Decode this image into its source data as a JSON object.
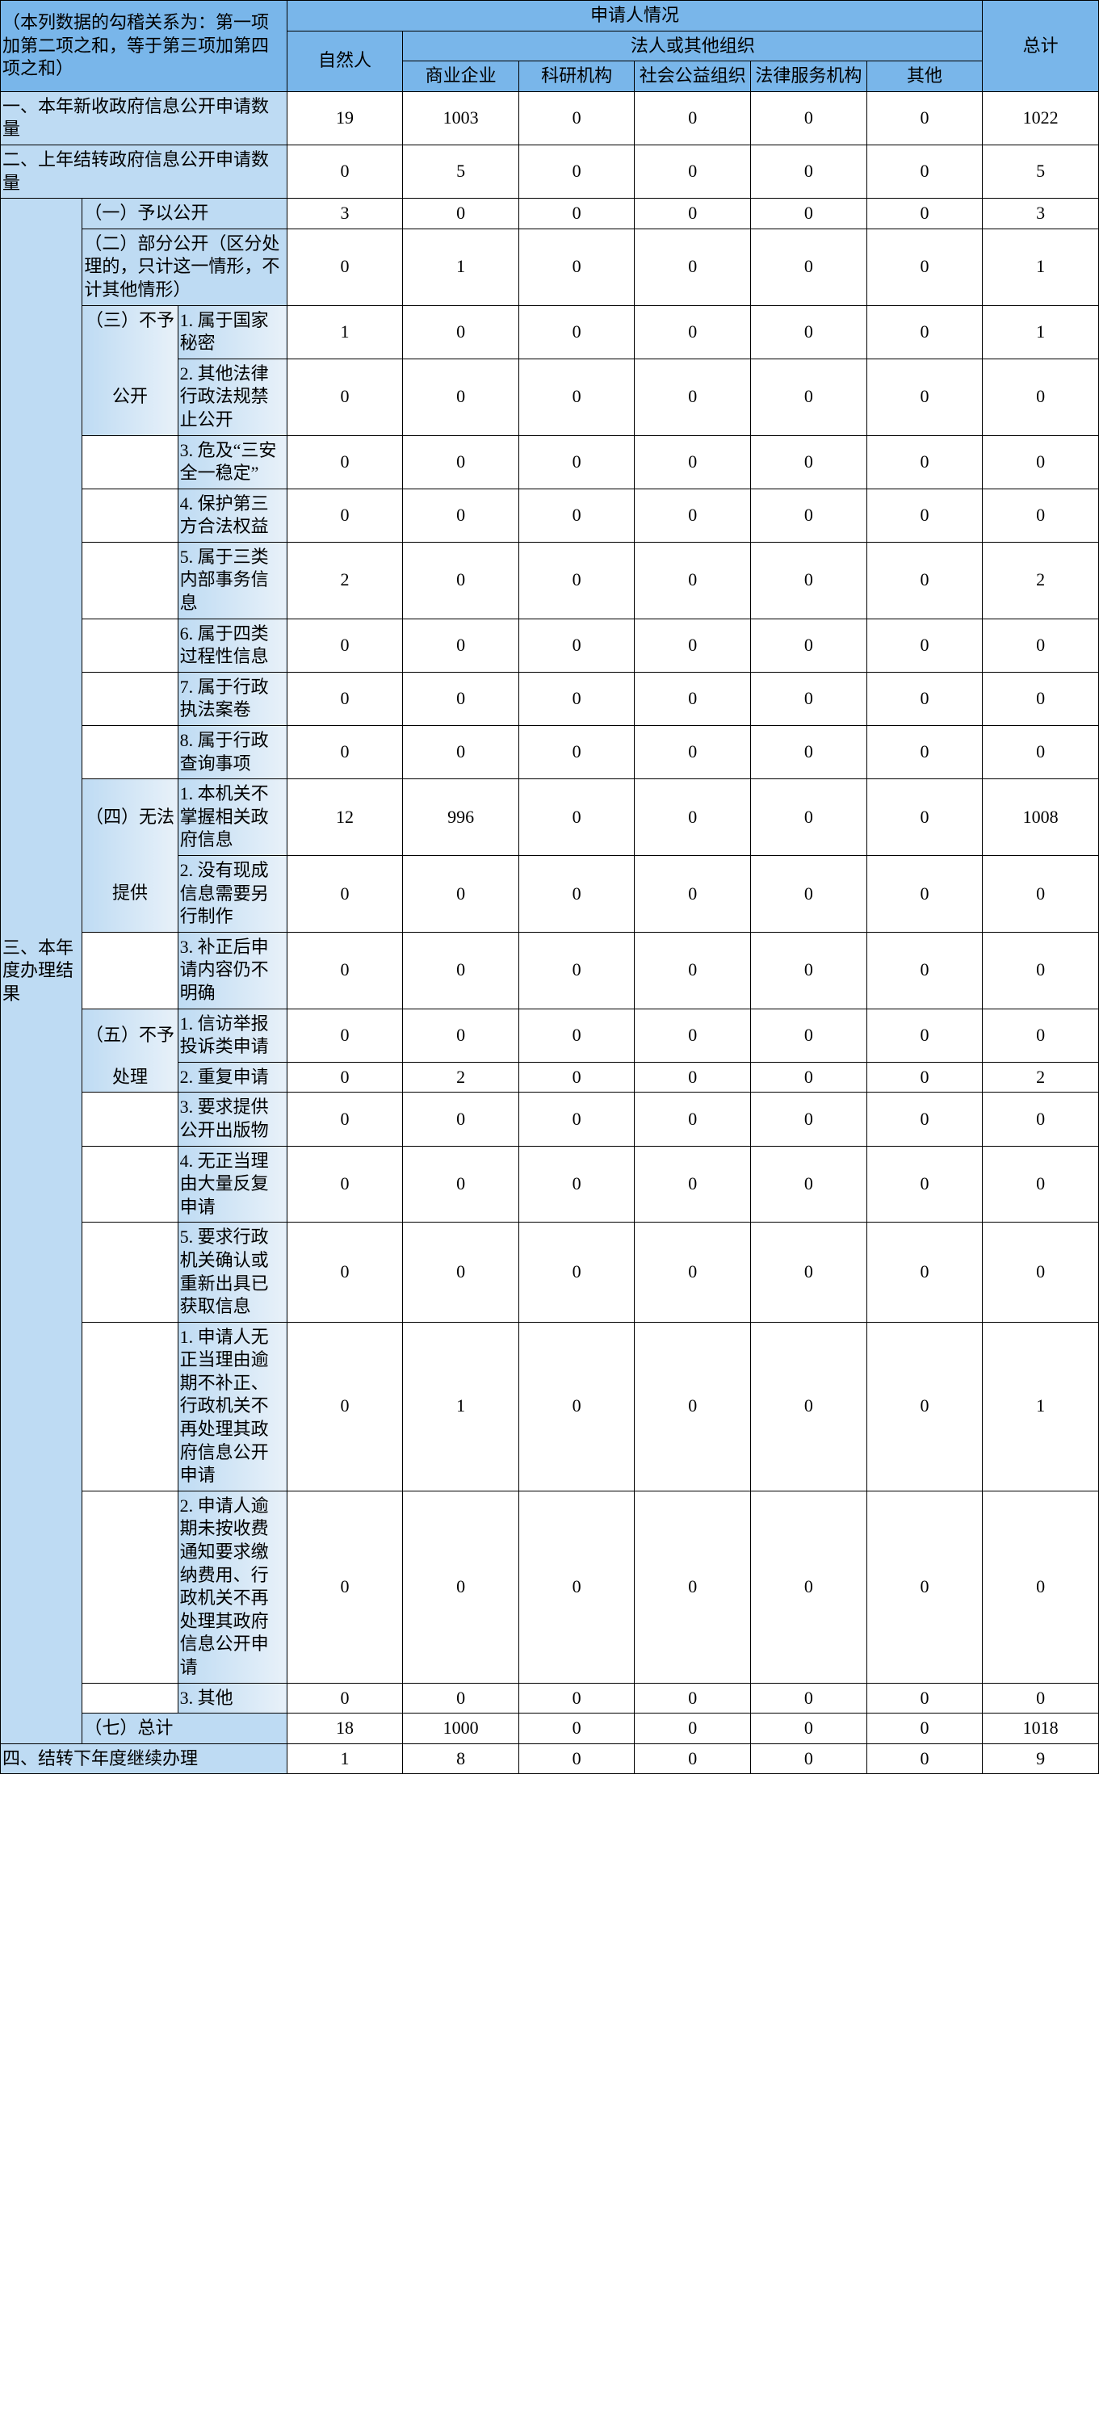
{
  "header": {
    "corner_note": "（本列数据的勾稽关系为：第一项加第二项之和，等于第三项加第四项之和）",
    "top": "申请人情况",
    "natural": "自然人",
    "legal": "法人或其他组织",
    "legal_sub": [
      "商业企业",
      "科研机构",
      "社会公益组织",
      "法律服务机构",
      "其他"
    ],
    "total": "总计"
  },
  "rows": {
    "r1_label": "一、本年新收政府信息公开申请数量",
    "r1": [
      "19",
      "1003",
      "0",
      "0",
      "0",
      "0",
      "1022"
    ],
    "r2_label": "二、上年结转政府信息公开申请数量",
    "r2": [
      "0",
      "5",
      "0",
      "0",
      "0",
      "0",
      "5"
    ],
    "r3_side_label": "三、本年度办理结果",
    "r3a_label": "（一）予以公开",
    "r3a": [
      "3",
      "0",
      "0",
      "0",
      "0",
      "0",
      "3"
    ],
    "r3b_label": "（二）部分公开（区分处理的，只计这一情形，不计其他情形）",
    "r3b": [
      "0",
      "1",
      "0",
      "0",
      "0",
      "0",
      "1"
    ],
    "r3c_side": "（三）不予",
    "r3c_side2": "公开",
    "r3c1_label": "1. 属于国家秘密",
    "r3c1": [
      "1",
      "0",
      "0",
      "0",
      "0",
      "0",
      "1"
    ],
    "r3c2_label": "2. 其他法律行政法规禁止公开",
    "r3c2": [
      "0",
      "0",
      "0",
      "0",
      "0",
      "0",
      "0"
    ],
    "r3c3_label": "3. 危及&ldquo;三安全一稳定&rdquo;",
    "r3c3": [
      "0",
      "0",
      "0",
      "0",
      "0",
      "0",
      "0"
    ],
    "r3c4_label": "4. 保护第三方合法权益",
    "r3c4": [
      "0",
      "0",
      "0",
      "0",
      "0",
      "0",
      "0"
    ],
    "r3c5_label": "5. 属于三类内部事务信息",
    "r3c5": [
      "2",
      "0",
      "0",
      "0",
      "0",
      "0",
      "2"
    ],
    "r3c6_label": "6. 属于四类过程性信息",
    "r3c6": [
      "0",
      "0",
      "0",
      "0",
      "0",
      "0",
      "0"
    ],
    "r3c7_label": "7. 属于行政执法案卷",
    "r3c7": [
      "0",
      "0",
      "0",
      "0",
      "0",
      "0",
      "0"
    ],
    "r3c8_label": "8. 属于行政查询事项",
    "r3c8": [
      "0",
      "0",
      "0",
      "0",
      "0",
      "0",
      "0"
    ],
    "r3d_side": "（四）无法",
    "r3d_side2": "提供",
    "r3d1_label": "1. 本机关不掌握相关政府信息",
    "r3d1": [
      "12",
      "996",
      "0",
      "0",
      "0",
      "0",
      "1008"
    ],
    "r3d2_label": "2. 没有现成信息需要另行制作",
    "r3d2": [
      "0",
      "0",
      "0",
      "0",
      "0",
      "0",
      "0"
    ],
    "r3d3_label": "3. 补正后申请内容仍不明确",
    "r3d3": [
      "0",
      "0",
      "0",
      "0",
      "0",
      "0",
      "0"
    ],
    "r3e_side": "（五）不予",
    "r3e_side2": "处理",
    "r3e1_label": "1. 信访举报投诉类申请",
    "r3e1": [
      "0",
      "0",
      "0",
      "0",
      "0",
      "0",
      "0"
    ],
    "r3e2_label": "2. 重复申请",
    "r3e2": [
      "0",
      "2",
      "0",
      "0",
      "0",
      "0",
      "2"
    ],
    "r3e3_label": "3. 要求提供公开出版物",
    "r3e3": [
      "0",
      "0",
      "0",
      "0",
      "0",
      "0",
      "0"
    ],
    "r3e4_label": "4. 无正当理由大量反复申请",
    "r3e4": [
      "0",
      "0",
      "0",
      "0",
      "0",
      "0",
      "0"
    ],
    "r3e5_label": "5. 要求行政机关确认或重新出具已获取信息",
    "r3e5": [
      "0",
      "0",
      "0",
      "0",
      "0",
      "0",
      "0"
    ],
    "r3f1_label": "1. 申请人无正当理由逾期不补正、行政机关不再处理其政府信息公开申请",
    "r3f1": [
      "0",
      "1",
      "0",
      "0",
      "0",
      "0",
      "1"
    ],
    "r3f2_label": "2. 申请人逾期未按收费通知要求缴纳费用、行政机关不再处理其政府信息公开申请",
    "r3f2": [
      "0",
      "0",
      "0",
      "0",
      "0",
      "0",
      "0"
    ],
    "r3f3_label": "3. 其他",
    "r3f3": [
      "0",
      "0",
      "0",
      "0",
      "0",
      "0",
      "0"
    ],
    "r3g_label": "（七）总计",
    "r3g": [
      "18",
      "1000",
      "0",
      "0",
      "0",
      "0",
      "1018"
    ],
    "r4_label": "四、结转下年度继续办理",
    "r4": [
      "1",
      "8",
      "0",
      "0",
      "0",
      "0",
      "9"
    ]
  }
}
